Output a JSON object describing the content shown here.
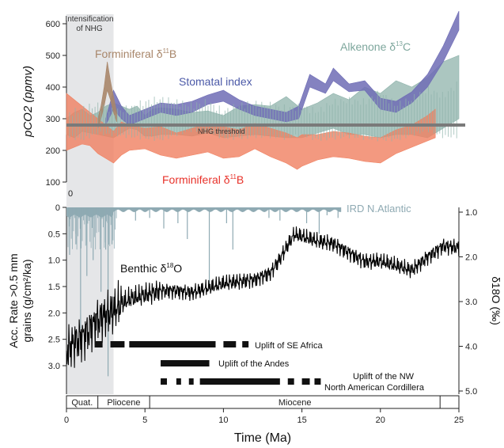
{
  "chart_data": [
    {
      "type": "area",
      "panel": "top",
      "ylabel": "pCO2 (ppmv)",
      "xlim": [
        0,
        25
      ],
      "ylim": [
        100,
        600
      ],
      "y_ticks": [
        "100",
        "200",
        "300",
        "400",
        "500",
        "600"
      ],
      "zero_label": "0",
      "shade_label_line1": "Intensification",
      "shade_label_line2": "of NHG",
      "shade_range": [
        0,
        3
      ],
      "threshold": {
        "label": "NHG threshold",
        "value": 280,
        "color": "#7a7a7a"
      },
      "series": [
        {
          "name": "Alkenone δ13C",
          "label_main": "Alkenone δ",
          "label_sup": "13",
          "label_end": "C",
          "color": "#8fb3ab",
          "x": [
            0,
            0.5,
            1,
            1.5,
            2,
            2.5,
            3,
            3.5,
            4,
            4.5,
            5,
            5.5,
            6,
            7,
            8,
            9,
            10,
            11,
            12,
            13,
            14,
            15,
            16,
            17,
            18,
            19,
            20,
            21,
            22,
            23,
            24,
            25
          ],
          "lower": [
            250,
            240,
            260,
            255,
            250,
            245,
            240,
            255,
            270,
            265,
            245,
            245,
            250,
            250,
            245,
            255,
            240,
            245,
            250,
            245,
            240,
            240,
            255,
            270,
            250,
            250,
            240,
            250,
            250,
            240,
            270,
            300
          ],
          "upper": [
            300,
            320,
            330,
            310,
            320,
            340,
            350,
            340,
            330,
            340,
            310,
            330,
            335,
            330,
            320,
            325,
            310,
            340,
            345,
            340,
            370,
            330,
            350,
            380,
            360,
            400,
            380,
            420,
            400,
            430,
            480,
            500
          ]
        },
        {
          "name": "Stomatal index",
          "label_main": "Stomatal index",
          "color": "#6e6cb5",
          "x": [
            2.5,
            3,
            3.5,
            4,
            5,
            6,
            7,
            8,
            9,
            10,
            11,
            12,
            13,
            14,
            14.8,
            15.5,
            16.5,
            17,
            18,
            19,
            20,
            21,
            22,
            23,
            24,
            25
          ],
          "lower": [
            280,
            330,
            300,
            280,
            300,
            320,
            310,
            320,
            345,
            355,
            330,
            310,
            300,
            290,
            300,
            400,
            380,
            420,
            385,
            390,
            330,
            320,
            350,
            400,
            480,
            580
          ],
          "upper": [
            300,
            390,
            340,
            310,
            330,
            350,
            345,
            355,
            375,
            390,
            360,
            340,
            330,
            320,
            340,
            440,
            410,
            460,
            410,
            420,
            365,
            355,
            385,
            440,
            530,
            640
          ]
        },
        {
          "name": "Forminiferal δ11B",
          "label_main": "Forminiferal δ",
          "label_sup": "11",
          "label_end": "B",
          "color": "#f08060",
          "x": [
            0,
            0.5,
            1,
            1.5,
            2,
            2.5,
            3,
            3.5,
            4,
            5,
            6,
            7,
            8,
            9,
            10,
            11,
            12,
            13,
            14,
            14.7,
            15,
            16,
            17,
            18,
            19,
            20,
            21,
            22,
            23,
            23.5
          ],
          "lower": [
            200,
            210,
            220,
            215,
            190,
            175,
            160,
            185,
            200,
            205,
            185,
            175,
            185,
            195,
            175,
            180,
            205,
            180,
            160,
            140,
            150,
            170,
            180,
            175,
            165,
            160,
            190,
            210,
            230,
            240
          ],
          "upper": [
            380,
            360,
            340,
            320,
            300,
            280,
            260,
            290,
            280,
            270,
            275,
            255,
            270,
            285,
            275,
            265,
            285,
            270,
            255,
            240,
            250,
            250,
            260,
            255,
            245,
            240,
            265,
            280,
            310,
            330
          ]
        },
        {
          "name": "Forminiferal δ11B (Pliocene record)",
          "label_main": "Forminiferal δ",
          "label_sup": "11",
          "label_end": "B",
          "color": "#a8866a",
          "x": [
            2.0,
            2.2,
            2.4,
            2.6,
            2.8,
            3.0,
            3.2
          ],
          "lower": [
            270,
            300,
            340,
            390,
            360,
            320,
            290
          ],
          "upper": [
            300,
            340,
            400,
            480,
            420,
            370,
            320
          ]
        }
      ]
    },
    {
      "type": "line",
      "panel": "bottom",
      "xlabel": "Time (Ma)",
      "xlim": [
        0,
        25
      ],
      "x_ticks": [
        "0",
        "5",
        "10",
        "15",
        "20",
        "25"
      ],
      "left_axis": {
        "label_line1": "Acc. Rate >0.5 mm",
        "label_line2": "grains (g/cm²/ka)",
        "ylim": [
          0,
          3.5
        ],
        "ticks": [
          "0",
          "0.5",
          "1.0",
          "1.5",
          "2.0",
          "2.5",
          "3.0"
        ]
      },
      "right_axis": {
        "label": "δ18O (‰)",
        "ylim": [
          1.0,
          5.0
        ],
        "ticks": [
          "1.0",
          "2.0",
          "3.0",
          "4.0",
          "5.0"
        ]
      },
      "series": [
        {
          "name": "IRD N.Atlantic",
          "label_main": "IRD N.Atlantic",
          "color": "#8faab3",
          "axis": "left",
          "x": [
            0.2,
            0.6,
            0.9,
            1.3,
            1.7,
            2.2,
            2.5,
            2.65,
            2.9,
            4.4,
            5.3,
            6.2,
            7.1,
            7.7,
            9.1,
            10.2,
            10.6,
            12.9,
            13.6,
            15.3,
            16.1,
            16.6,
            17.3
          ],
          "values": [
            0.9,
            0.7,
            2.3,
            1.3,
            1.0,
            1.6,
            0.8,
            3.2,
            0.7,
            0.25,
            0.2,
            0.4,
            0.3,
            0.6,
            1.5,
            0.3,
            0.8,
            0.2,
            0.25,
            0.3,
            0.5,
            0.15,
            0.2
          ]
        },
        {
          "name": "Benthic δ18O",
          "label_main": "Benthic δ",
          "label_sup": "18",
          "label_end": "O",
          "color": "#000000",
          "axis": "right",
          "x": [
            0,
            0.5,
            1,
            1.5,
            2,
            2.5,
            3,
            3.5,
            4,
            5,
            6,
            7,
            8,
            9,
            10,
            11,
            12,
            13,
            13.5,
            14,
            14.5,
            15,
            16,
            17,
            18,
            19,
            20,
            21,
            22,
            23,
            24,
            25
          ],
          "values": [
            4.1,
            3.9,
            3.8,
            3.6,
            3.4,
            3.3,
            3.2,
            3.05,
            2.95,
            2.85,
            2.75,
            2.75,
            2.8,
            2.7,
            2.6,
            2.55,
            2.5,
            2.35,
            2.1,
            1.8,
            1.5,
            1.55,
            1.65,
            1.7,
            1.9,
            2.1,
            2.1,
            2.2,
            2.3,
            2.0,
            1.75,
            1.8
          ]
        }
      ],
      "uplift_events": [
        {
          "label": "Uplift of SE Africa",
          "segments": [
            [
              1.8,
              2.3
            ],
            [
              2.8,
              3.7
            ],
            [
              4.0,
              9.5
            ],
            [
              10.0,
              10.8
            ],
            [
              11.2,
              11.6
            ]
          ]
        },
        {
          "label": "Uplift of the Andes",
          "segments": [
            [
              6.0,
              9.1
            ]
          ]
        },
        {
          "label_line1": "Uplift of the NW",
          "label_line2": "North American Cordillera",
          "segments": [
            [
              6.0,
              6.4
            ],
            [
              7.0,
              7.3
            ],
            [
              7.8,
              8.1
            ],
            [
              8.5,
              13.6
            ],
            [
              14.1,
              14.5
            ],
            [
              15.0,
              15.5
            ],
            [
              15.8,
              16.2
            ]
          ]
        }
      ],
      "epochs": [
        {
          "name": "Quat.",
          "start": 0,
          "end": 2.0
        },
        {
          "name": "Pliocene",
          "start": 2.0,
          "end": 5.3
        },
        {
          "name": "Miocene",
          "start": 5.3,
          "end": 23.8
        },
        {
          "name": "",
          "start": 23.8,
          "end": 25
        }
      ]
    }
  ]
}
